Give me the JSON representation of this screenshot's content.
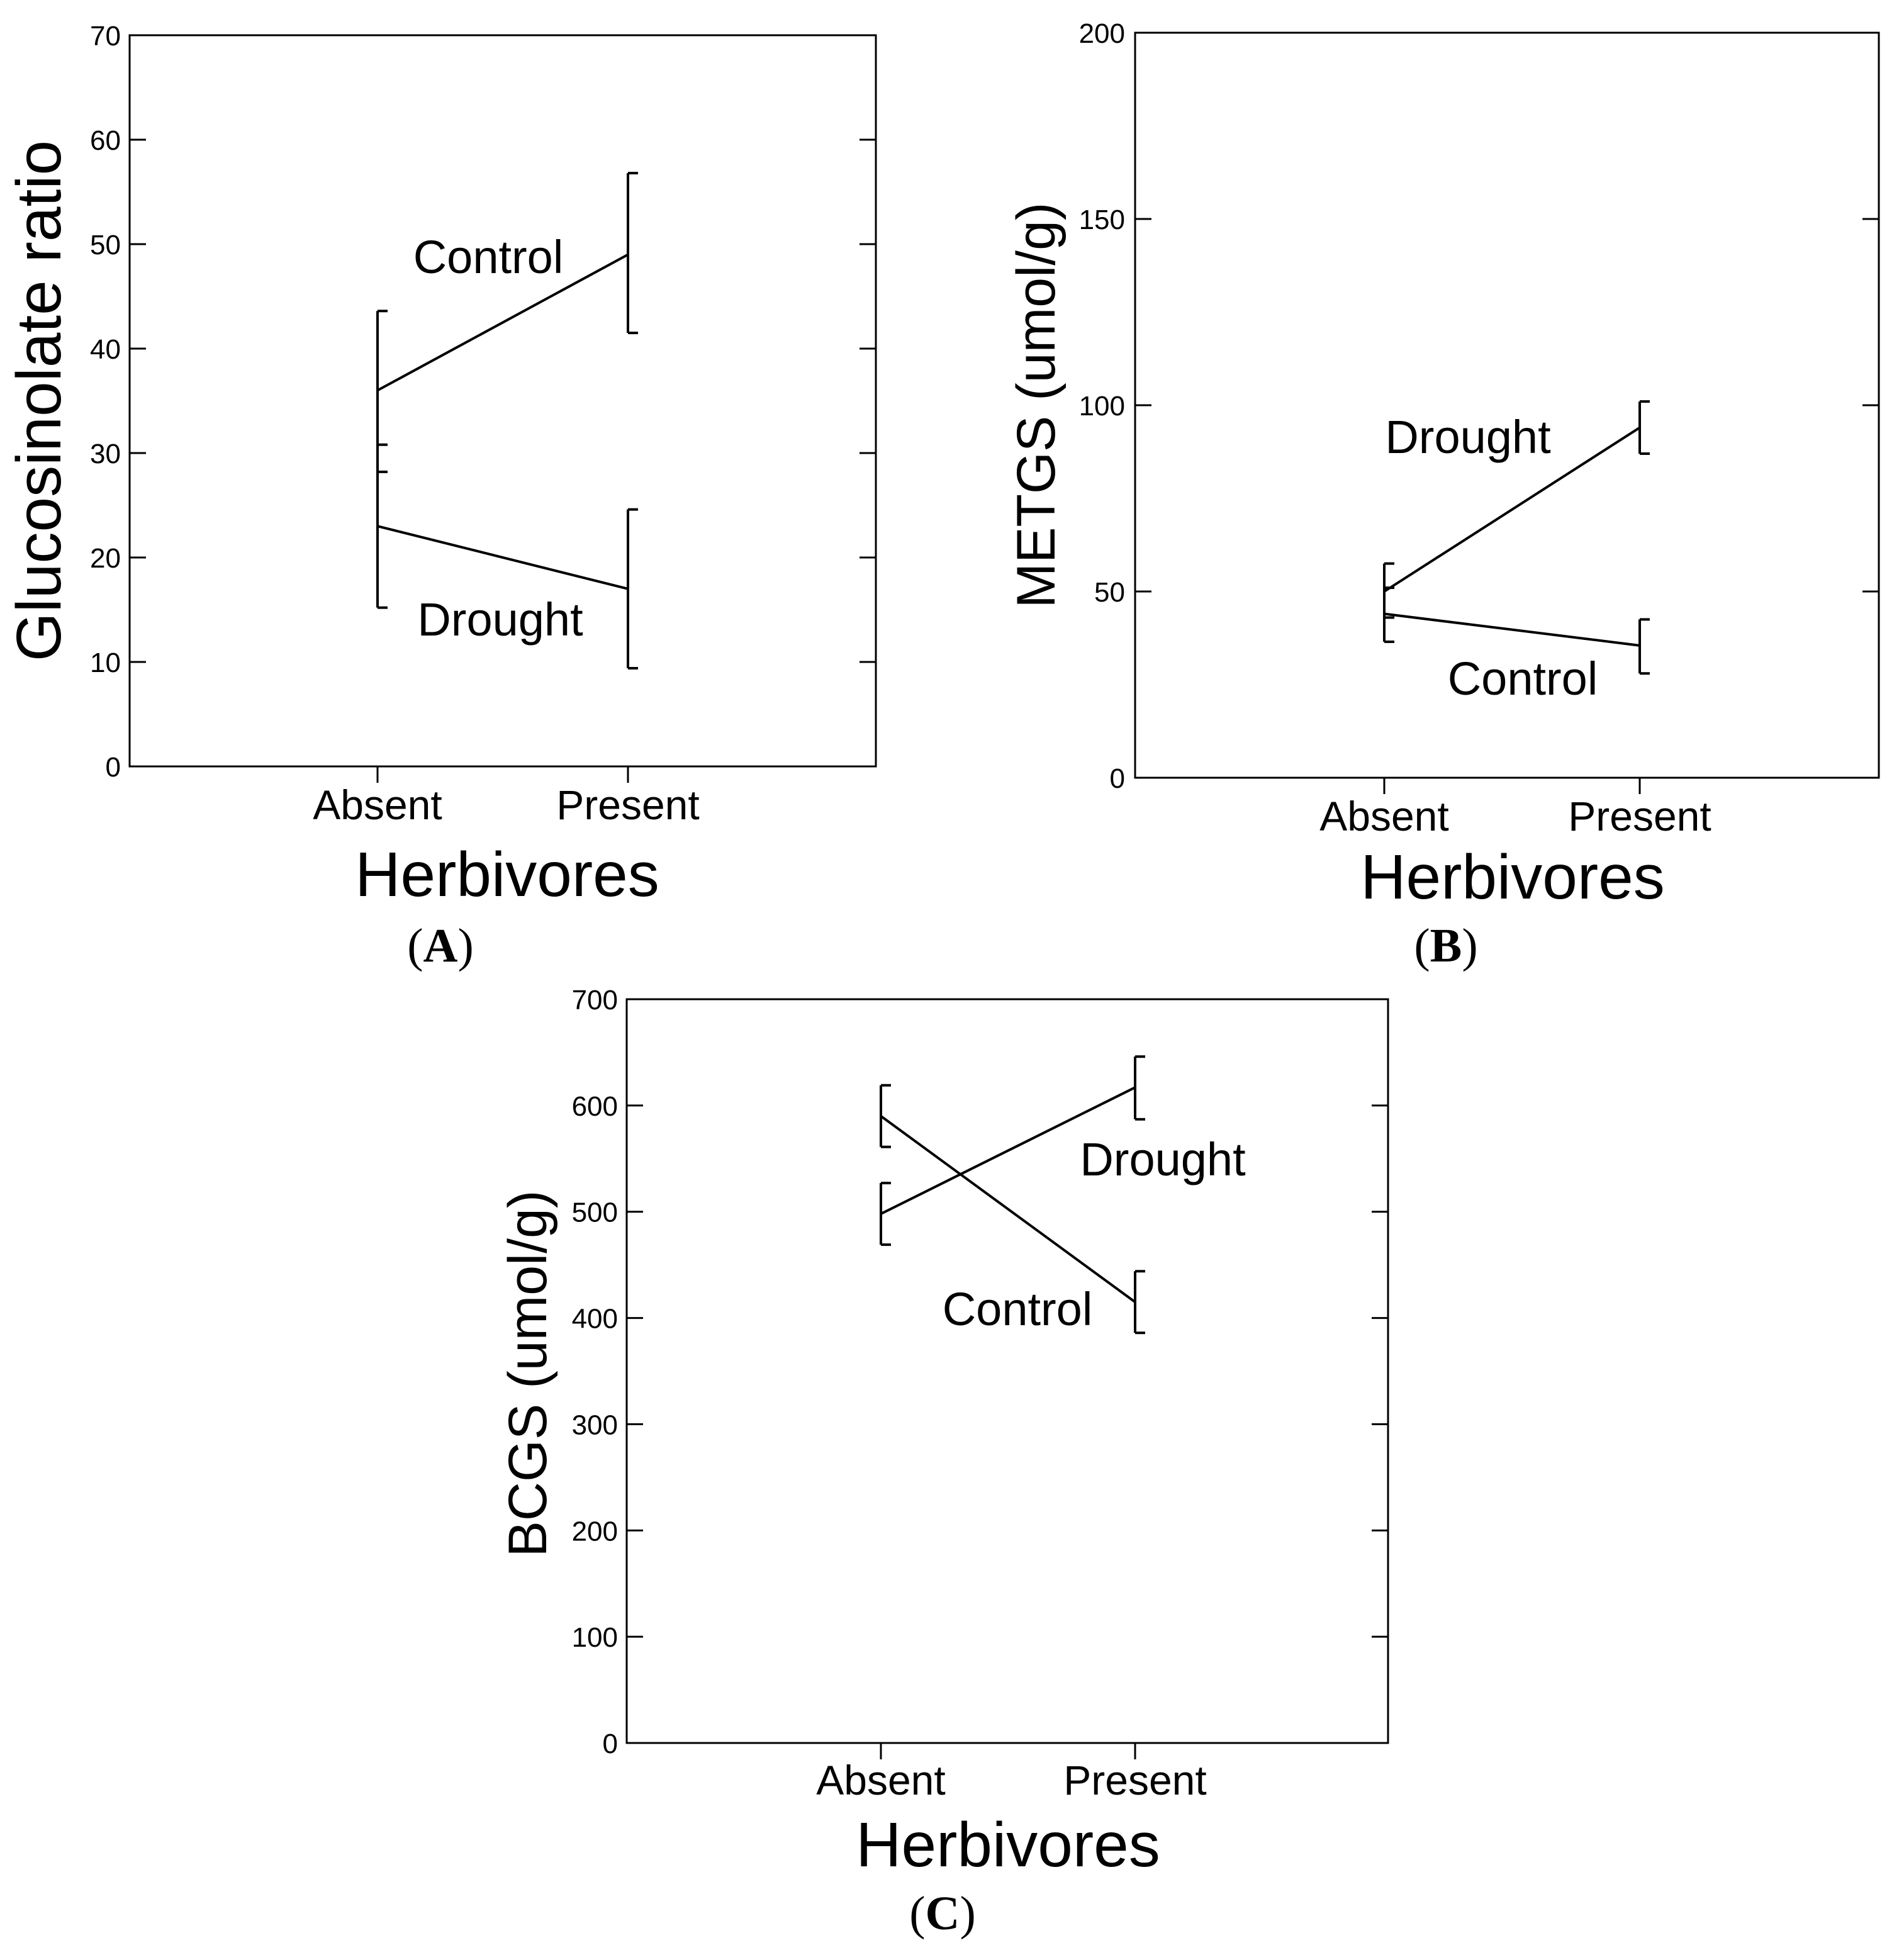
{
  "chart_data": [
    {
      "type": "line",
      "panel": "A",
      "xlabel": "Herbivores",
      "ylabel": "Glucosinolate ratio",
      "categories": [
        "Absent",
        "Present"
      ],
      "ylim": [
        0,
        70
      ],
      "yticks": [
        0,
        10,
        20,
        30,
        40,
        50,
        60,
        70
      ],
      "series": [
        {
          "name": "Control",
          "values": [
            36,
            49
          ],
          "error_low": [
            28.2,
            41.5
          ],
          "error_high": [
            43.6,
            56.8
          ]
        },
        {
          "name": "Drought",
          "values": [
            23,
            17
          ],
          "error_low": [
            15.2,
            9.4
          ],
          "error_high": [
            30.8,
            24.6
          ]
        }
      ]
    },
    {
      "type": "line",
      "panel": "B",
      "xlabel": "Herbivores",
      "ylabel": "METGS (umol/g)",
      "categories": [
        "Absent",
        "Present"
      ],
      "ylim": [
        0,
        200
      ],
      "yticks": [
        0,
        50,
        100,
        150,
        200
      ],
      "series": [
        {
          "name": "Drought",
          "values": [
            50,
            94
          ],
          "error_low": [
            43,
            87
          ],
          "error_high": [
            57.5,
            101
          ]
        },
        {
          "name": "Control",
          "values": [
            44,
            35.5
          ],
          "error_low": [
            36.5,
            28
          ],
          "error_high": [
            51,
            42.5
          ]
        }
      ]
    },
    {
      "type": "line",
      "panel": "C",
      "xlabel": "Herbivores",
      "ylabel": "BCGS (umol/g)",
      "categories": [
        "Absent",
        "Present"
      ],
      "ylim": [
        0,
        700
      ],
      "yticks": [
        0,
        100,
        200,
        300,
        400,
        500,
        600,
        700
      ],
      "series": [
        {
          "name": "Drought",
          "values": [
            498,
            617
          ],
          "error_low": [
            469,
            587
          ],
          "error_high": [
            527,
            646
          ]
        },
        {
          "name": "Control",
          "values": [
            590,
            415
          ],
          "error_low": [
            561,
            386
          ],
          "error_high": [
            619,
            444
          ]
        }
      ]
    }
  ],
  "panel_labels": {
    "A": {
      "open": "(",
      "letter": "A",
      "close": ")"
    },
    "B": {
      "open": "(",
      "letter": "B",
      "close": ")"
    },
    "C": {
      "open": "(",
      "letter": "C",
      "close": ")"
    }
  }
}
